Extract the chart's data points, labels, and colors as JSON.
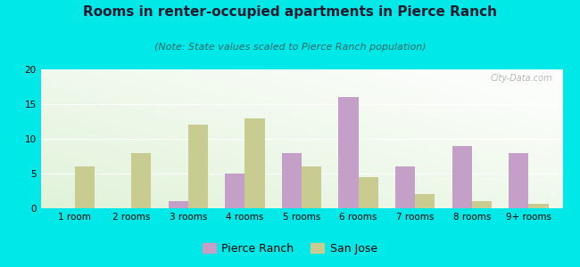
{
  "title": "Rooms in renter-occupied apartments in Pierce Ranch",
  "subtitle": "(Note: State values scaled to Pierce Ranch population)",
  "categories": [
    "1 room",
    "2 rooms",
    "3 rooms",
    "4 rooms",
    "5 rooms",
    "6 rooms",
    "7 rooms",
    "8 rooms",
    "9+ rooms"
  ],
  "pierce_ranch": [
    0,
    0,
    1,
    5,
    8,
    16,
    6,
    9,
    8
  ],
  "san_jose": [
    6,
    8,
    12,
    13,
    6,
    4.5,
    2,
    1,
    0.7
  ],
  "pierce_color": "#c4a0c8",
  "san_jose_color": "#c8cc90",
  "ylim": [
    0,
    20
  ],
  "yticks": [
    0,
    5,
    10,
    15,
    20
  ],
  "background_outer": "#00e8e8",
  "watermark": "City-Data.com",
  "bar_width": 0.35,
  "title_fontsize": 11,
  "subtitle_fontsize": 8,
  "legend_fontsize": 9,
  "tick_fontsize": 7.5
}
